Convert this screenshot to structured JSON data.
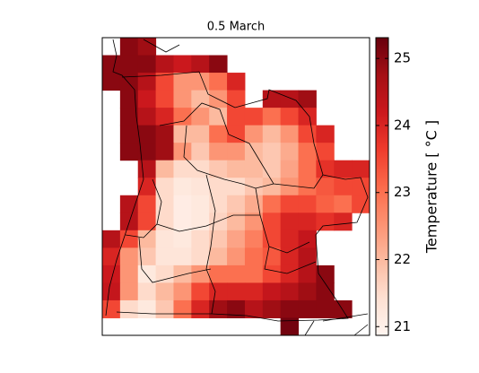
{
  "chart_data": {
    "type": "heatmap",
    "title": "0.5 March",
    "colorbar_label": "Temperature [ °C ]",
    "clim": [
      20.87,
      25.31
    ],
    "cticks": [
      21,
      22,
      23,
      24,
      25
    ],
    "colormap": [
      "#fff5f0",
      "#fee0d2",
      "#fcbba1",
      "#fc9272",
      "#fb6a4a",
      "#ef3b2c",
      "#cb181d",
      "#a50f15",
      "#67000d"
    ],
    "values": [
      [
        null,
        25,
        24.8,
        null,
        null,
        null,
        null,
        null,
        null,
        null,
        null,
        null,
        null,
        null,
        null
      ],
      [
        25,
        25,
        25,
        24.5,
        24.2,
        24.5,
        25,
        null,
        null,
        null,
        null,
        null,
        null,
        null,
        null
      ],
      [
        25,
        25,
        24.5,
        23.5,
        22.5,
        22.5,
        23,
        24,
        null,
        null,
        null,
        null,
        null,
        null,
        null
      ],
      [
        null,
        25,
        24.2,
        23.5,
        22.5,
        22,
        22.5,
        23.5,
        null,
        24.5,
        24.5,
        24.8,
        null,
        null,
        null
      ],
      [
        null,
        25,
        24.5,
        24,
        23,
        22.5,
        22,
        23.5,
        23.5,
        23,
        23.5,
        24,
        null,
        null,
        null
      ],
      [
        null,
        25,
        25,
        24.8,
        22,
        22,
        23,
        23.5,
        22.5,
        22,
        22.5,
        23.5,
        24,
        null,
        null
      ],
      [
        null,
        25,
        25,
        24.8,
        22.5,
        21.8,
        22.5,
        22.5,
        22,
        21.8,
        22.2,
        23,
        23.5,
        null,
        null
      ],
      [
        null,
        null,
        24.5,
        22,
        21.5,
        21.5,
        21.8,
        22,
        22,
        21.8,
        22.3,
        23,
        23.8,
        24,
        24
      ],
      [
        null,
        null,
        24,
        21.5,
        21.2,
        21.3,
        21.5,
        21.5,
        21.8,
        22,
        22.5,
        23,
        23.3,
        23.5,
        23.5
      ],
      [
        null,
        24.5,
        23.5,
        21.5,
        21.1,
        21.2,
        21.5,
        21.8,
        22.2,
        23,
        23.5,
        23.5,
        23.2,
        23,
        23.5
      ],
      [
        null,
        24.5,
        23.5,
        21.5,
        21.1,
        21.2,
        21.6,
        22,
        22.5,
        23.5,
        24,
        24,
        23.8,
        24,
        null
      ],
      [
        24.5,
        23.5,
        22,
        21.3,
        21.2,
        21.5,
        21.8,
        22.3,
        22.8,
        23.5,
        24,
        24.3,
        null,
        null,
        null
      ],
      [
        24,
        22.5,
        21.8,
        21.3,
        21.3,
        21.5,
        22,
        22.5,
        23,
        23.3,
        24,
        24.5,
        null,
        null,
        null
      ],
      [
        24.2,
        22.5,
        21.2,
        21.5,
        22,
        22.5,
        23,
        23,
        23,
        23.5,
        24,
        24.5,
        25,
        null,
        null
      ],
      [
        24.3,
        22.5,
        21.5,
        22,
        22.5,
        23.5,
        24,
        24,
        24,
        24.3,
        24.5,
        24.8,
        25,
        null,
        null
      ],
      [
        23.5,
        21.5,
        21.2,
        21.8,
        23,
        24,
        24.8,
        25,
        24.5,
        24.8,
        25,
        25,
        25,
        25,
        null
      ],
      [
        null,
        null,
        null,
        null,
        null,
        null,
        null,
        null,
        null,
        null,
        25.2,
        null,
        null,
        null,
        null
      ]
    ]
  }
}
